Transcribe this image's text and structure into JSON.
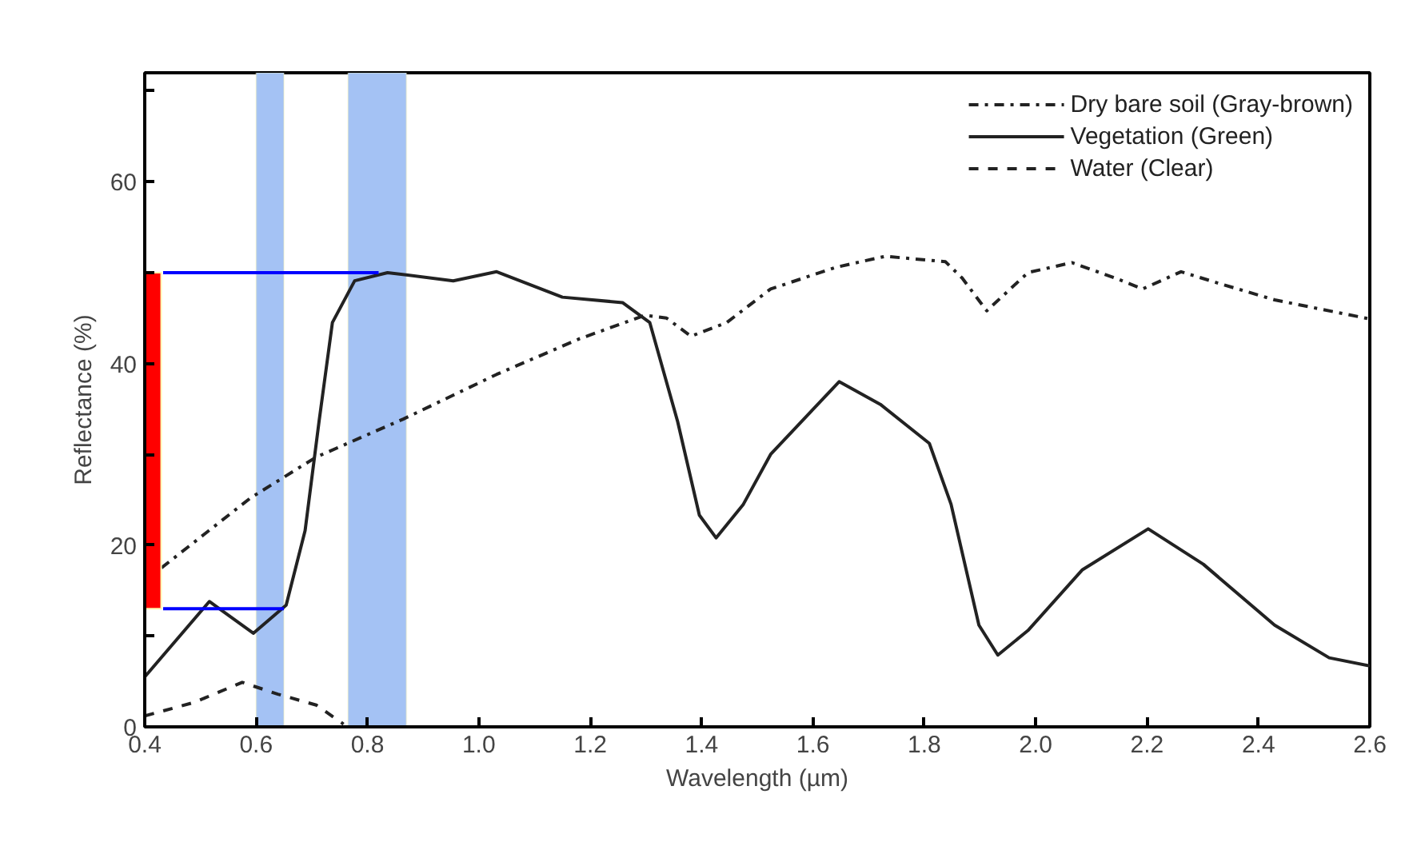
{
  "chart_data": {
    "type": "line",
    "xlabel": "Wavelength (µm)",
    "ylabel": "Reflectance (%)",
    "xlim": [
      0.4,
      2.6
    ],
    "xticks": [
      0.4,
      0.6,
      0.8,
      {
        "value": 1.0,
        "label": "1.0"
      },
      1.2,
      1.4,
      1.6,
      1.8,
      {
        "value": 2.0,
        "label": "2.0"
      },
      2.2,
      2.4,
      2.6
    ],
    "ylim": [
      0,
      72
    ],
    "yticks": [
      0,
      {
        "value": 10,
        "label": null
      },
      20,
      {
        "value": 30,
        "label": null
      },
      40,
      {
        "value": 50,
        "label": null
      },
      60,
      {
        "value": 70,
        "label": null
      }
    ],
    "grid": false,
    "legend": "top right",
    "marker": "none",
    "bands": [
      {
        "axis": "x",
        "from": 0.6,
        "to": 0.65,
        "color": "#a4c2f4"
      },
      {
        "axis": "x",
        "from": 0.765,
        "to": 0.87,
        "color": "#a4c2f4"
      }
    ],
    "series": [
      {
        "name": "Dry bare soil (Gray-brown)",
        "color": "#222222",
        "line_style": "dashdot",
        "x": [
          0.43,
          0.59,
          0.708,
          0.865,
          1.032,
          1.18,
          1.298,
          1.337,
          1.381,
          1.445,
          1.524,
          1.642,
          1.73,
          1.838,
          1.868,
          1.912,
          1.986,
          2.065,
          2.143,
          2.192,
          2.261,
          2.33,
          2.429,
          2.6
        ],
        "values": [
          17.5,
          25.2,
          29.7,
          33.9,
          38.8,
          42.7,
          45.3,
          45.0,
          43.0,
          44.5,
          48.2,
          50.6,
          51.8,
          51.2,
          49.4,
          45.8,
          50.0,
          51.1,
          49.4,
          48.2,
          50.1,
          48.8,
          47.0,
          44.9
        ]
      },
      {
        "name": "Vegetation (Green)",
        "color": "#222222",
        "line_style": "solid",
        "x": [
          0.4,
          0.516,
          0.595,
          0.654,
          0.688,
          0.713,
          0.737,
          0.777,
          0.836,
          0.954,
          1.032,
          1.15,
          1.258,
          1.307,
          1.357,
          1.396,
          1.426,
          1.475,
          1.524,
          1.647,
          1.721,
          1.809,
          1.848,
          1.898,
          1.932,
          1.986,
          2.084,
          2.202,
          2.301,
          2.429,
          2.527,
          2.6
        ],
        "values": [
          5.5,
          13.8,
          10.3,
          13.4,
          21.6,
          33.6,
          44.5,
          49.1,
          50.0,
          49.1,
          50.1,
          47.3,
          46.7,
          44.5,
          33.6,
          23.3,
          20.8,
          24.5,
          30.0,
          38.0,
          35.5,
          31.2,
          24.5,
          11.2,
          7.9,
          10.6,
          17.3,
          21.8,
          17.9,
          11.2,
          7.6,
          6.7
        ]
      },
      {
        "name": "Water (Clear)",
        "color": "#222222",
        "line_style": "dashed",
        "x": [
          0.4,
          0.489,
          0.575,
          0.639,
          0.708,
          0.757
        ],
        "values": [
          1.2,
          2.7,
          4.9,
          3.6,
          2.4,
          0.3
        ]
      },
      {
        "type": "line",
        "color": "#0000ff",
        "line_style": "solid",
        "x": [
          0.433,
          0.82
        ],
        "values": [
          50,
          50
        ]
      },
      {
        "type": "line",
        "color": "#0000ff",
        "line_style": "solid",
        "x": [
          0.433,
          0.65
        ],
        "values": [
          13,
          13
        ]
      },
      {
        "type": "bar",
        "color": "#ff0000",
        "x": [
          0.407
        ],
        "base": [
          13
        ],
        "values": [
          37
        ]
      }
    ]
  }
}
